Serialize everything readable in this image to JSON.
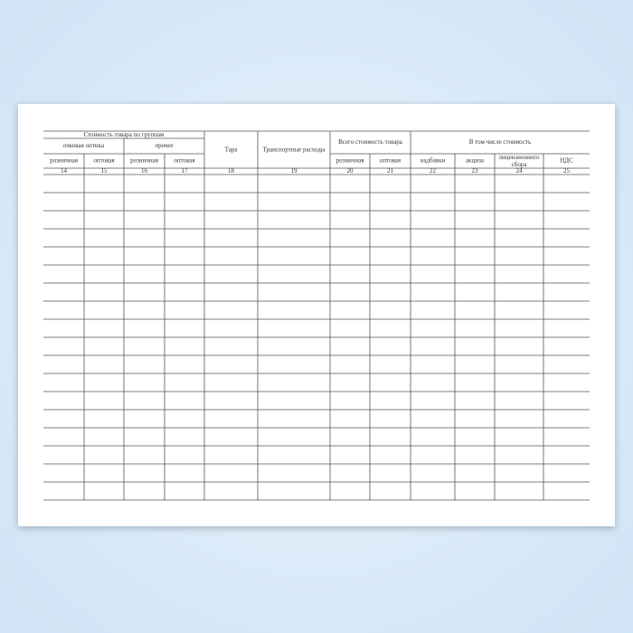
{
  "table": {
    "group_title": "Стоимость товара по группам",
    "groups": [
      "очковая оптика",
      "прочее"
    ],
    "tara": "Тара",
    "transport": "Транспортные расходы",
    "total_title": "Всего стоимость товара",
    "including_title": "В том числе стоимость",
    "subheaders": [
      "розничная",
      "оптовая",
      "розничная",
      "оптовая",
      "розничная",
      "оптовая",
      "надбавки",
      "акциза",
      "лицензионного сбора",
      "НДС"
    ],
    "column_numbers": [
      14,
      15,
      16,
      17,
      18,
      19,
      20,
      21,
      22,
      23,
      24,
      25
    ]
  }
}
